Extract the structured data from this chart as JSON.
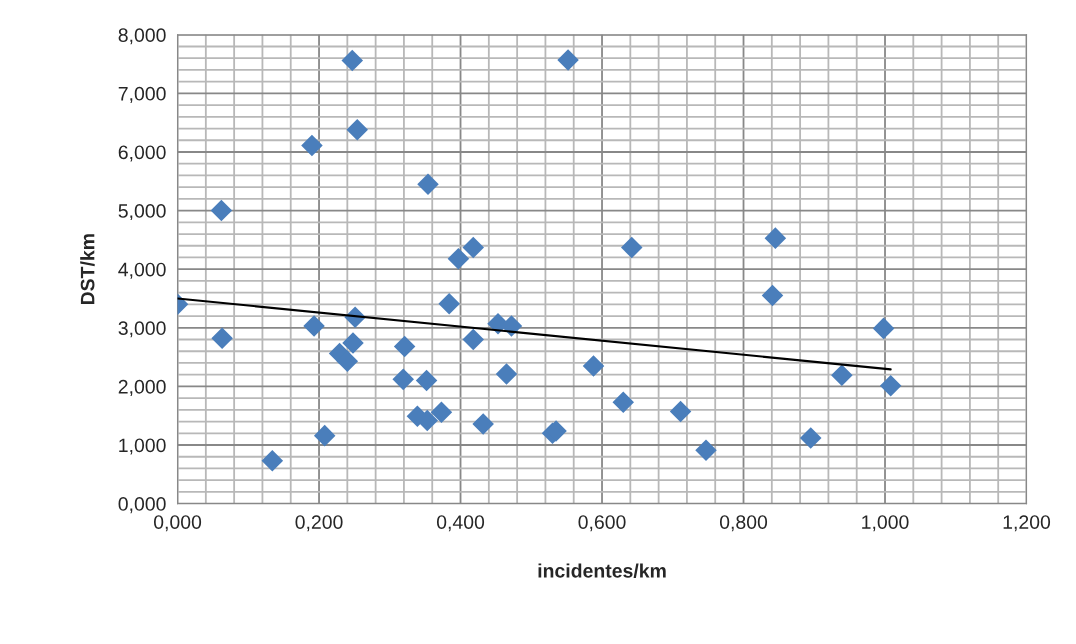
{
  "chart_data": {
    "type": "scatter",
    "xlabel": "incidentes/km",
    "ylabel": "DST/km",
    "xlim": [
      0,
      1.2
    ],
    "ylim": [
      0,
      8
    ],
    "xticks": [
      {
        "value": 0,
        "label": "0,000"
      },
      {
        "value": 0.04,
        "label": null
      },
      {
        "value": 0.08,
        "label": null
      },
      {
        "value": 0.12,
        "label": null
      },
      {
        "value": 0.16,
        "label": null
      },
      {
        "value": 0.2,
        "label": "0,200"
      },
      {
        "value": 0.24,
        "label": null
      },
      {
        "value": 0.28,
        "label": null
      },
      {
        "value": 0.32,
        "label": null
      },
      {
        "value": 0.36,
        "label": null
      },
      {
        "value": 0.4,
        "label": "0,400"
      },
      {
        "value": 0.44,
        "label": null
      },
      {
        "value": 0.48,
        "label": null
      },
      {
        "value": 0.52,
        "label": null
      },
      {
        "value": 0.56,
        "label": null
      },
      {
        "value": 0.6,
        "label": "0,600"
      },
      {
        "value": 0.64,
        "label": null
      },
      {
        "value": 0.68,
        "label": null
      },
      {
        "value": 0.72,
        "label": null
      },
      {
        "value": 0.76,
        "label": null
      },
      {
        "value": 0.8,
        "label": "0,800"
      },
      {
        "value": 0.84,
        "label": null
      },
      {
        "value": 0.88,
        "label": null
      },
      {
        "value": 0.92,
        "label": null
      },
      {
        "value": 0.96,
        "label": null
      },
      {
        "value": 1.0,
        "label": "1,000"
      },
      {
        "value": 1.04,
        "label": null
      },
      {
        "value": 1.08,
        "label": null
      },
      {
        "value": 1.12,
        "label": null
      },
      {
        "value": 1.16,
        "label": null
      },
      {
        "value": 1.2,
        "label": "1,200"
      }
    ],
    "yticks": [
      {
        "value": 0,
        "label": "0,000"
      },
      {
        "value": 0.2,
        "label": null
      },
      {
        "value": 0.4,
        "label": null
      },
      {
        "value": 0.6,
        "label": null
      },
      {
        "value": 0.8,
        "label": null
      },
      {
        "value": 1,
        "label": "1,000"
      },
      {
        "value": 1.2,
        "label": null
      },
      {
        "value": 1.4,
        "label": null
      },
      {
        "value": 1.6,
        "label": null
      },
      {
        "value": 1.8,
        "label": null
      },
      {
        "value": 2,
        "label": "2,000"
      },
      {
        "value": 2.2,
        "label": null
      },
      {
        "value": 2.4,
        "label": null
      },
      {
        "value": 2.6,
        "label": null
      },
      {
        "value": 2.8,
        "label": null
      },
      {
        "value": 3,
        "label": "3,000"
      },
      {
        "value": 3.2,
        "label": null
      },
      {
        "value": 3.4,
        "label": null
      },
      {
        "value": 3.6,
        "label": null
      },
      {
        "value": 3.8,
        "label": null
      },
      {
        "value": 4,
        "label": "4,000"
      },
      {
        "value": 4.2,
        "label": null
      },
      {
        "value": 4.4,
        "label": null
      },
      {
        "value": 4.6,
        "label": null
      },
      {
        "value": 4.8,
        "label": null
      },
      {
        "value": 5,
        "label": "5,000"
      },
      {
        "value": 5.2,
        "label": null
      },
      {
        "value": 5.4,
        "label": null
      },
      {
        "value": 5.6,
        "label": null
      },
      {
        "value": 5.8,
        "label": null
      },
      {
        "value": 6,
        "label": "6,000"
      },
      {
        "value": 6.2,
        "label": null
      },
      {
        "value": 6.4,
        "label": null
      },
      {
        "value": 6.6,
        "label": null
      },
      {
        "value": 6.8,
        "label": null
      },
      {
        "value": 7,
        "label": "7,000"
      },
      {
        "value": 7.2,
        "label": null
      },
      {
        "value": 7.4,
        "label": null
      },
      {
        "value": 7.6,
        "label": null
      },
      {
        "value": 7.8,
        "label": null
      },
      {
        "value": 8,
        "label": "8,000"
      }
    ],
    "grid": true,
    "legend": false,
    "series": [
      {
        "marker": "diamond",
        "color": "#4a7ebb",
        "x": [
          0.247,
          0.552,
          0.254,
          0.19,
          0.354,
          0.062,
          0.397,
          0.418,
          0.0,
          0.063,
          0.193,
          0.251,
          0.248,
          0.229,
          0.24,
          0.321,
          0.319,
          0.352,
          0.208,
          0.134,
          0.339,
          0.353,
          0.373,
          0.384,
          0.418,
          0.453,
          0.472,
          0.465,
          0.432,
          0.53,
          0.535,
          0.588,
          0.642,
          0.845,
          0.841,
          0.998,
          0.939,
          1.008,
          0.63,
          0.711,
          0.747,
          0.895
        ],
        "values": [
          7.56,
          7.57,
          6.38,
          6.11,
          5.45,
          5.0,
          4.18,
          4.37,
          3.4,
          2.82,
          3.03,
          3.18,
          2.74,
          2.56,
          2.43,
          2.68,
          2.12,
          2.1,
          1.16,
          0.73,
          1.49,
          1.42,
          1.56,
          3.41,
          2.8,
          3.07,
          3.03,
          2.21,
          1.36,
          1.2,
          1.24,
          2.35,
          4.37,
          4.53,
          3.55,
          2.99,
          2.19,
          2.01,
          1.73,
          1.57,
          0.91,
          1.12
        ]
      },
      {
        "type": "line",
        "color": "#000000",
        "marker": "none",
        "line_style": "solid",
        "x": [
          0,
          1.008
        ],
        "values": [
          3.5,
          2.29
        ]
      }
    ]
  }
}
